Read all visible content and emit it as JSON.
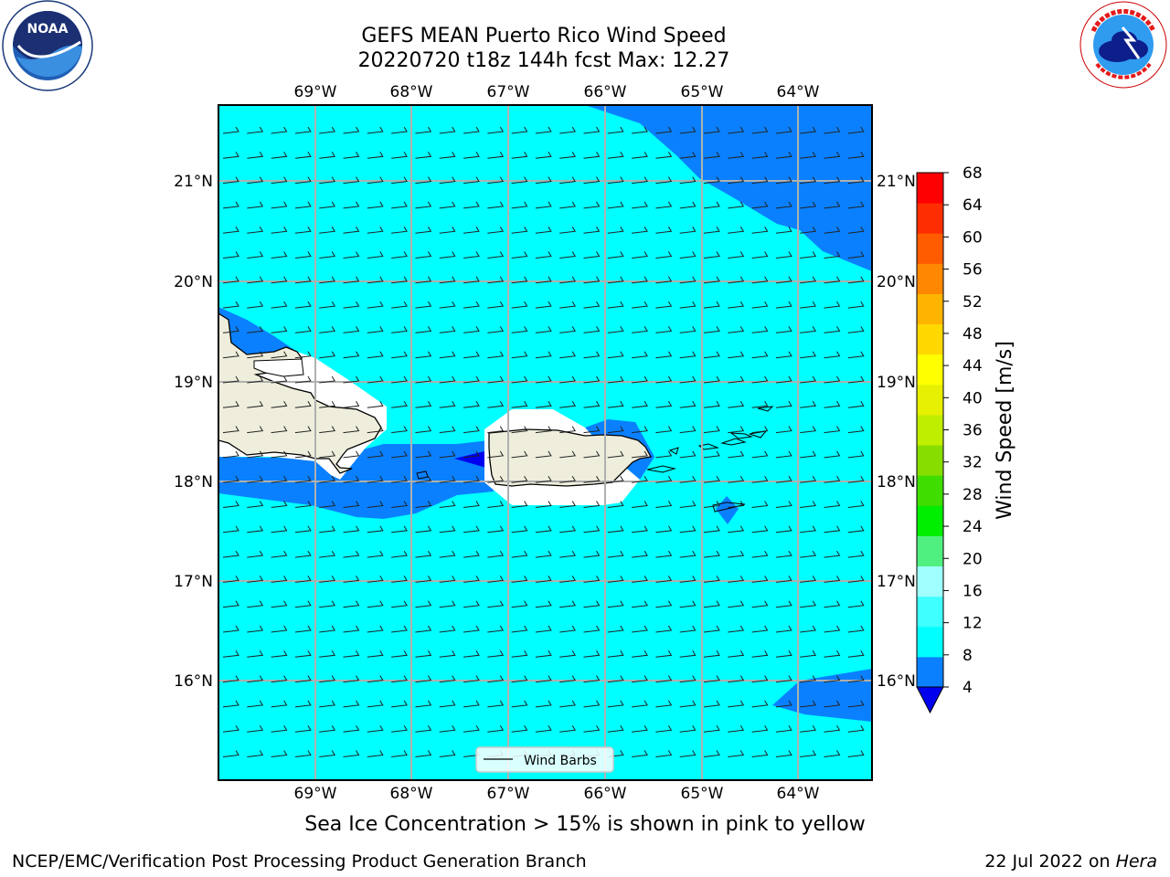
{
  "title": {
    "line1": "GEFS MEAN Puerto Rico Wind Speed",
    "line2": "20220720 t18z 144h fcst   Max: 12.27"
  },
  "logos": {
    "left": {
      "icon": "noaa-logo-icon",
      "text": "NOAA",
      "ring_text": "NATIONAL OCEANIC AND ATMOSPHERIC ADMINISTRATION · U.S. DEPARTMENT OF COMMERCE"
    },
    "right": {
      "icon": "nws-logo-icon",
      "ring_text": "NATIONAL WEATHER SERVICE"
    }
  },
  "map": {
    "lon_labels": [
      "69°W",
      "68°W",
      "67°W",
      "66°W",
      "65°W",
      "64°W"
    ],
    "lat_labels_left": [
      "21°N",
      "20°N",
      "19°N",
      "18°N",
      "17°N",
      "16°N"
    ],
    "lat_labels_right": [
      "21°N",
      "20°N",
      "19°N",
      "18°N",
      "17°N",
      "16°N"
    ],
    "legend_label": "Wind Barbs",
    "colors": {
      "band_8_12": "#00ffff",
      "band_4_8": "#0a80ff",
      "below_4": "#0000ee",
      "land": "#efeedc",
      "grid": "#b0b0b0"
    }
  },
  "colorbar": {
    "label": "Wind Speed [m/s]",
    "ticks": [
      "68",
      "64",
      "60",
      "56",
      "52",
      "48",
      "44",
      "40",
      "36",
      "32",
      "28",
      "24",
      "20",
      "16",
      "12",
      "8",
      "4"
    ],
    "colors": [
      "#0a80ff",
      "#00ffff",
      "#40ffff",
      "#a0ffff",
      "#50f080",
      "#00ee00",
      "#40dd00",
      "#88dd00",
      "#c0ee00",
      "#e6f000",
      "#ffff00",
      "#ffd800",
      "#ffb400",
      "#ff8800",
      "#ff5c00",
      "#ff2e00",
      "#ff0000"
    ],
    "under_color": "#0000ee"
  },
  "footer": {
    "subtitle": "Sea Ice Concentration > 15% is shown in pink to yellow",
    "left": "NCEP/EMC/Verification Post Processing Product Generation Branch",
    "right_prefix": "22 Jul 2022 on ",
    "right_italic": "Hera"
  }
}
